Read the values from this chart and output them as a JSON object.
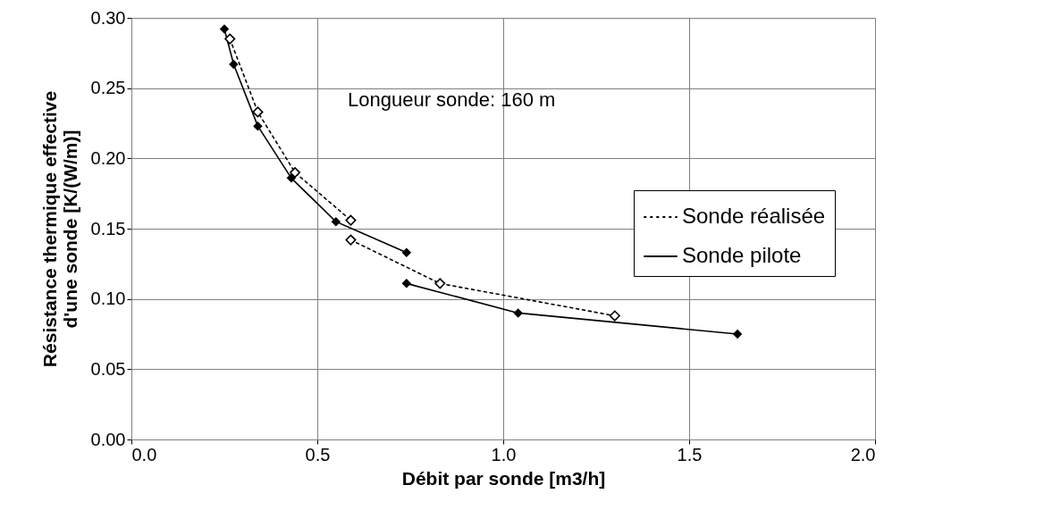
{
  "chart_data": {
    "type": "line",
    "xlabel": "Débit par sonde [m3/h]",
    "ylabel": "Résistance thermique effective d'une sonde  [K/(W/m)]",
    "xlim": [
      0,
      2
    ],
    "ylim": [
      0,
      0.3
    ],
    "xticks": [
      {
        "value": 0,
        "label": "0.0"
      },
      {
        "value": 0.5,
        "label": "0.5"
      },
      {
        "value": 1,
        "label": "1.0"
      },
      {
        "value": 1.5,
        "label": "1.5"
      },
      {
        "value": 2,
        "label": "2.0"
      }
    ],
    "yticks": [
      {
        "value": 0,
        "label": "0.00"
      },
      {
        "value": 0.05,
        "label": "0.05"
      },
      {
        "value": 0.1,
        "label": "0.10"
      },
      {
        "value": 0.15,
        "label": "0.15"
      },
      {
        "value": 0.2,
        "label": "0.20"
      },
      {
        "value": 0.25,
        "label": "0.25"
      },
      {
        "value": 0.3,
        "label": "0.30"
      }
    ],
    "grid": true,
    "legend": "right",
    "marker": "diamond",
    "series": [
      {
        "name": "Sonde réalisée",
        "color": "#000000",
        "line_style": "dotted",
        "x": [
          0.265,
          0.34,
          0.44,
          0.59
        ],
        "values": [
          0.285,
          0.233,
          0.19,
          0.156
        ]
      },
      {
        "color": "#000000",
        "line_style": "dotted",
        "x": [
          0.59,
          0.83,
          1.3
        ],
        "values": [
          0.142,
          0.111,
          0.088
        ]
      },
      {
        "name": "Sonde pilote",
        "color": "#000000",
        "line_style": "solid",
        "x": [
          0.25,
          0.275,
          0.34,
          0.43,
          0.55,
          0.74
        ],
        "values": [
          0.292,
          0.267,
          0.223,
          0.186,
          0.155,
          0.133
        ]
      },
      {
        "color": "#000000",
        "line_style": "solid",
        "x": [
          0.74,
          1.04,
          1.63
        ],
        "values": [
          0.111,
          0.09,
          0.075
        ]
      }
    ],
    "annotations": [
      "Longueur sonde: 160 m"
    ]
  }
}
